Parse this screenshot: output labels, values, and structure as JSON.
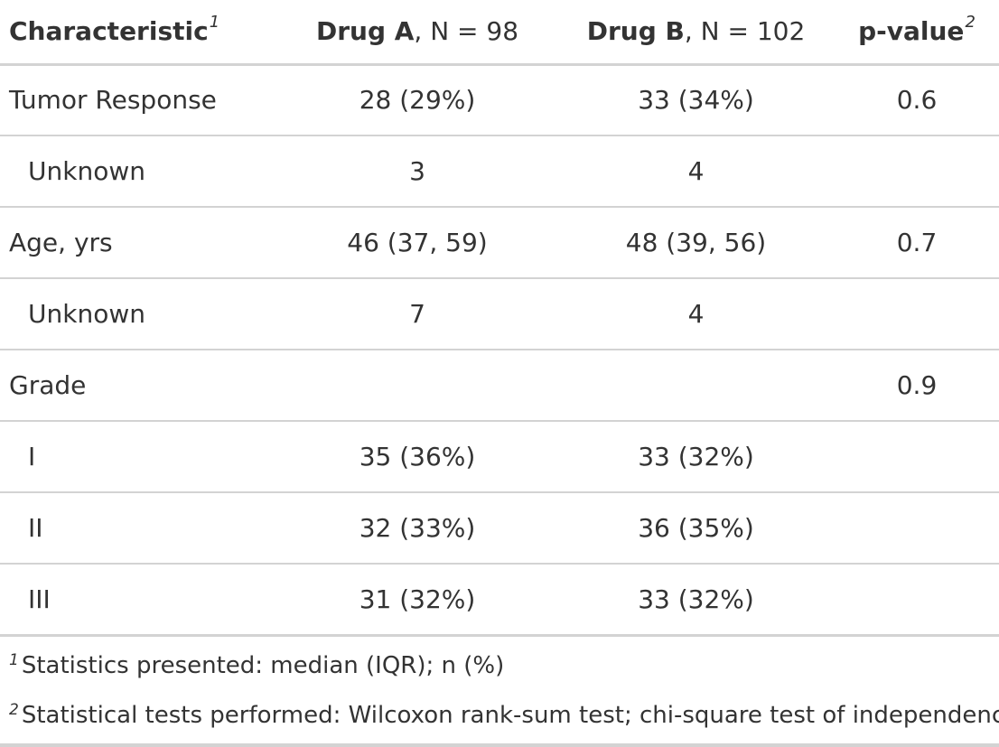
{
  "header": {
    "characteristic": "Characteristic",
    "characteristic_mark": "1",
    "drug_a_name": "Drug A",
    "drug_a_n": ", N = 98",
    "drug_b_name": "Drug B",
    "drug_b_n": ", N = 102",
    "pvalue": "p-value",
    "pvalue_mark": "2"
  },
  "rows": [
    {
      "label": "Tumor Response",
      "drug_a": "28 (29%)",
      "drug_b": "33 (34%)",
      "p": "0.6"
    },
    {
      "label": "Unknown",
      "drug_a": "3",
      "drug_b": "4",
      "p": ""
    },
    {
      "label": "Age, yrs",
      "drug_a": "46 (37, 59)",
      "drug_b": "48 (39, 56)",
      "p": "0.7"
    },
    {
      "label": "Unknown",
      "drug_a": "7",
      "drug_b": "4",
      "p": ""
    },
    {
      "label": "Grade",
      "drug_a": "",
      "drug_b": "",
      "p": "0.9"
    },
    {
      "label": "I",
      "drug_a": "35 (36%)",
      "drug_b": "33 (32%)",
      "p": ""
    },
    {
      "label": "II",
      "drug_a": "32 (33%)",
      "drug_b": "36 (35%)",
      "p": ""
    },
    {
      "label": "III",
      "drug_a": "31 (32%)",
      "drug_b": "33 (32%)",
      "p": ""
    }
  ],
  "footnotes": [
    {
      "mark": "1",
      "text": "Statistics presented: median (IQR); n (%)"
    },
    {
      "mark": "2",
      "text": "Statistical tests performed: Wilcoxon rank-sum test; chi-square test of independence"
    }
  ],
  "colors": {
    "text": "#333333",
    "rule": "#d3d3d3"
  }
}
